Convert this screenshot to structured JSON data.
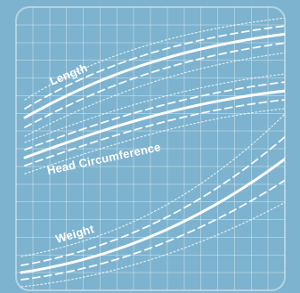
{
  "labels": {
    "length": "Length",
    "head_circumference": "Head Circumference",
    "weight": "Weight"
  },
  "colors": {
    "background": "#7db3cf",
    "grid": "rgba(255,255,255,0.34)",
    "curve": "#ffffff"
  }
}
